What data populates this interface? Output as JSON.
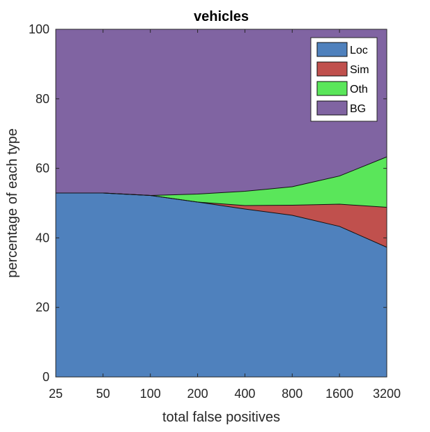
{
  "chart_data": {
    "type": "area",
    "title": "vehicles",
    "xlabel": "total false positives",
    "ylabel": "percentage of each type",
    "x": [
      "25",
      "50",
      "100",
      "200",
      "400",
      "800",
      "1600",
      "3200"
    ],
    "ylim": [
      0,
      100
    ],
    "yticks": [
      "0",
      "20",
      "40",
      "60",
      "80",
      "100"
    ],
    "stacked": true,
    "legend_position": "top-right",
    "series": [
      {
        "name": "Loc",
        "color": "#4f81bd",
        "values": [
          52.9,
          52.9,
          52.2,
          50.3,
          48.3,
          46.5,
          43.3,
          37.3
        ]
      },
      {
        "name": "Sim",
        "color": "#c0504d",
        "values": [
          0,
          0,
          0,
          0,
          1.0,
          2.9,
          6.4,
          11.5
        ]
      },
      {
        "name": "Oth",
        "color": "#5ae65a",
        "values": [
          0,
          0,
          0,
          2.3,
          4.1,
          5.3,
          8.1,
          14.5
        ]
      },
      {
        "name": "BG",
        "color": "#8064a2",
        "values": [
          47.1,
          47.1,
          47.8,
          47.4,
          46.6,
          45.3,
          42.2,
          36.7
        ]
      }
    ]
  }
}
